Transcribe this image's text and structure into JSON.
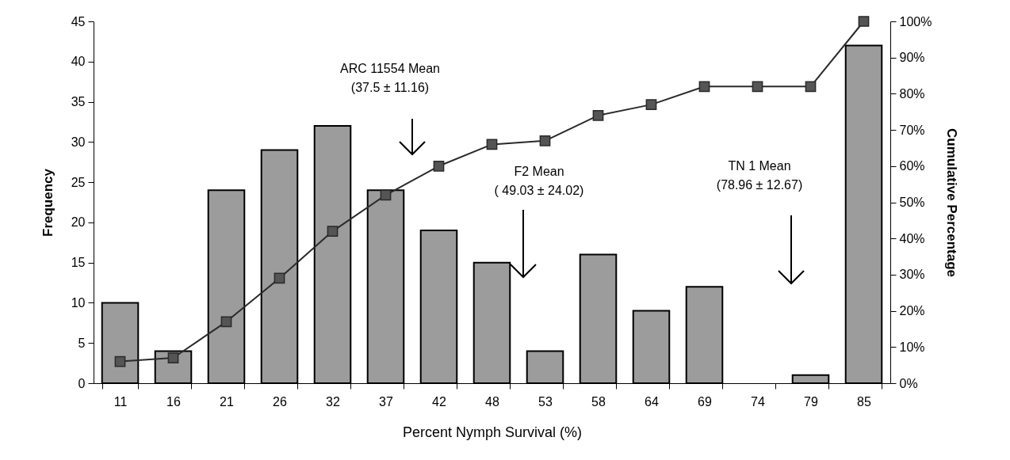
{
  "chart_data": {
    "type": "bar",
    "xlabel": "Percent Nymph Survival (%)",
    "ylabel": "Frequency",
    "y2label": "Cumulative Percentage",
    "categories": [
      "11",
      "16",
      "21",
      "26",
      "32",
      "37",
      "42",
      "48",
      "53",
      "58",
      "64",
      "69",
      "74",
      "79",
      "85"
    ],
    "series": [
      {
        "color": "#9c9c9c",
        "values": [
          10,
          4,
          24,
          29,
          32,
          24,
          19,
          15,
          4,
          16,
          9,
          12,
          null,
          1,
          42
        ]
      },
      {
        "type": "line",
        "axis": "y2",
        "color": "#2a2a2a",
        "values": [
          6,
          7,
          17,
          29,
          42,
          52,
          60,
          66,
          67,
          74,
          77,
          82,
          82,
          82,
          100
        ]
      }
    ],
    "ylim": [
      0,
      45
    ],
    "yticks": [
      0,
      5,
      10,
      15,
      20,
      25,
      30,
      35,
      40,
      45
    ],
    "y2lim": [
      0,
      100
    ],
    "y2ticks": [
      {
        "value": 0,
        "label": "0%"
      },
      {
        "value": 10,
        "label": "10%"
      },
      {
        "value": 20,
        "label": "20%"
      },
      {
        "value": 30,
        "label": "30%"
      },
      {
        "value": 40,
        "label": "40%"
      },
      {
        "value": 50,
        "label": "50%"
      },
      {
        "value": 60,
        "label": "60%"
      },
      {
        "value": 70,
        "label": "70%"
      },
      {
        "value": 80,
        "label": "80%"
      },
      {
        "value": 90,
        "label": "90%"
      },
      {
        "value": 100,
        "label": "100%"
      }
    ],
    "marker": "square",
    "grid": false,
    "annotations": [
      "ARC 11554 Mean\n(37.5 ± 11.16)",
      "F2 Mean\n( 49.03 ± 24.02)",
      "TN 1 Mean\n(78.96 ± 12.67)"
    ]
  }
}
